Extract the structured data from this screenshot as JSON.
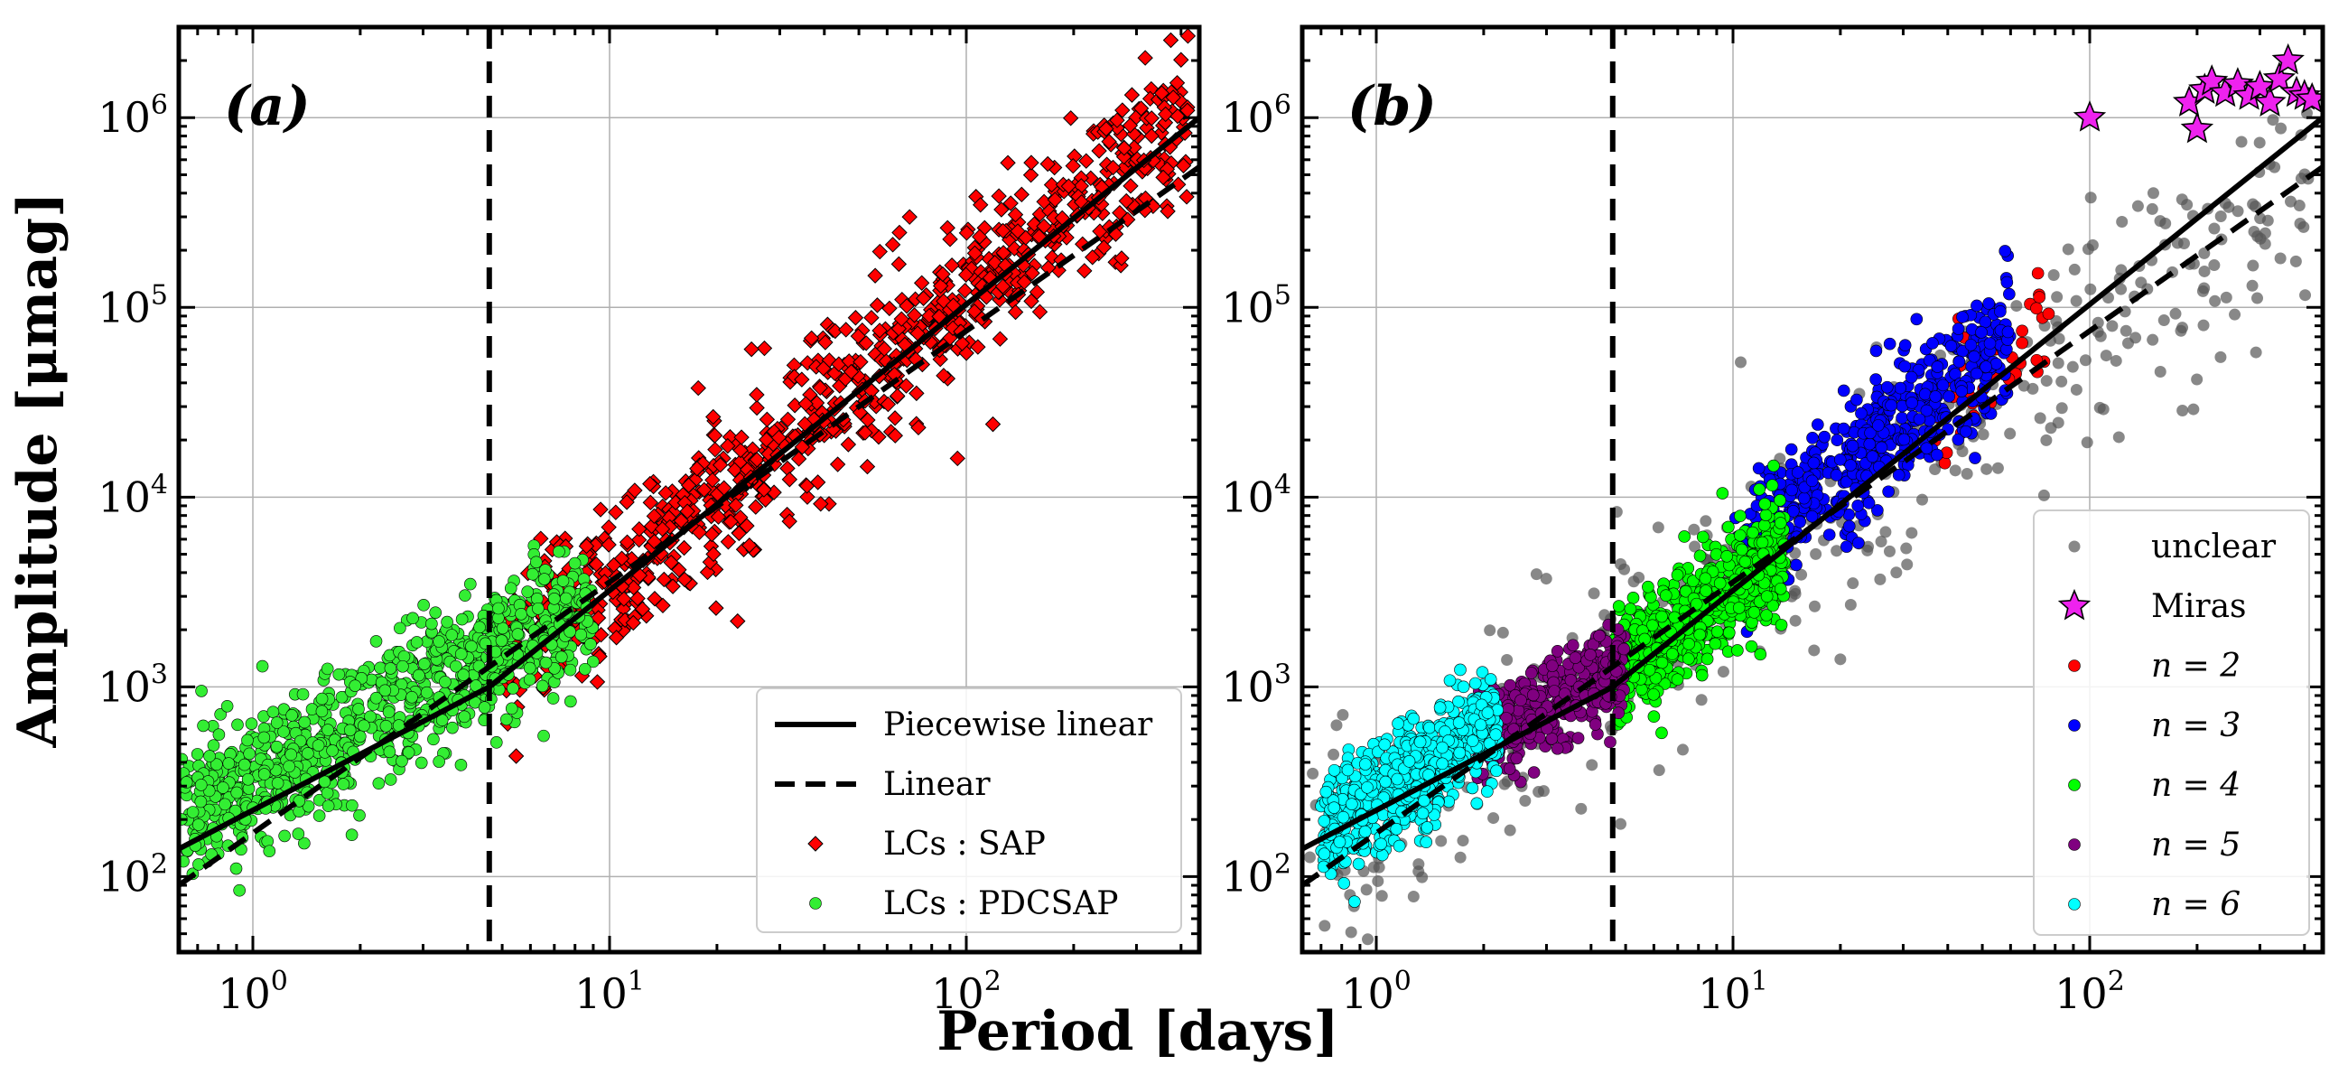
{
  "figure": {
    "xlabel": "Period [days]",
    "ylabel": "Amplitude [μmag]"
  },
  "chart_data": [
    {
      "type": "scatter",
      "panel_label": "(a)",
      "xscale": "log",
      "yscale": "log",
      "xlim": [
        0.62,
        450
      ],
      "ylim": [
        40,
        3000000
      ],
      "xticks": [
        {
          "base": "10",
          "exp": "0"
        },
        {
          "base": "10",
          "exp": "1"
        },
        {
          "base": "10",
          "exp": "2"
        }
      ],
      "yticks": [
        {
          "base": "10",
          "exp": "2"
        },
        {
          "base": "10",
          "exp": "3"
        },
        {
          "base": "10",
          "exp": "4"
        },
        {
          "base": "10",
          "exp": "5"
        },
        {
          "base": "10",
          "exp": "6"
        }
      ],
      "vline_x": 4.6,
      "fits": [
        {
          "name": "Piecewise linear",
          "style": "solid",
          "points": [
            [
              0.62,
              140
            ],
            [
              4.6,
              1000
            ],
            [
              450,
              1000000
            ]
          ]
        },
        {
          "name": "Linear",
          "style": "dashed",
          "points": [
            [
              0.62,
              90
            ],
            [
              450,
              550000
            ]
          ]
        }
      ],
      "series": [
        {
          "name": "LCs : SAP",
          "label_prefix": "LCs :",
          "label_suffix": "SAP",
          "marker": "diamond",
          "color": "#ff0000",
          "period_range": [
            5,
            420
          ],
          "slope": 1.5,
          "anchor_x": 10,
          "anchor_y": 3800,
          "scatter_dex": 0.2,
          "count": 900
        },
        {
          "name": "LCs : PDCSAP",
          "label_prefix": "LCs :",
          "label_suffix": "PDCSAP",
          "marker": "circle",
          "color": "#33ee33",
          "period_range": [
            0.63,
            9
          ],
          "slope": 1.0,
          "anchor_x": 1,
          "anchor_y": 320,
          "scatter_dex": 0.18,
          "count": 900
        }
      ],
      "legend": {
        "location": "lower-right"
      }
    },
    {
      "type": "scatter",
      "panel_label": "(b)",
      "xscale": "log",
      "yscale": "log",
      "xlim": [
        0.62,
        450
      ],
      "ylim": [
        40,
        3000000
      ],
      "xticks": [
        {
          "base": "10",
          "exp": "0"
        },
        {
          "base": "10",
          "exp": "1"
        },
        {
          "base": "10",
          "exp": "2"
        }
      ],
      "yticks": [
        {
          "base": "10",
          "exp": "2"
        },
        {
          "base": "10",
          "exp": "3"
        },
        {
          "base": "10",
          "exp": "4"
        },
        {
          "base": "10",
          "exp": "5"
        },
        {
          "base": "10",
          "exp": "6"
        }
      ],
      "vline_x": 4.6,
      "fits": [
        {
          "name": "Piecewise linear",
          "style": "solid",
          "points": [
            [
              0.62,
              140
            ],
            [
              4.6,
              1000
            ],
            [
              450,
              1000000
            ]
          ]
        },
        {
          "name": "Linear",
          "style": "dashed",
          "points": [
            [
              0.62,
              90
            ],
            [
              450,
              550000
            ]
          ]
        }
      ],
      "series": [
        {
          "name": "unclear",
          "label": "unclear",
          "marker": "circle",
          "color": "#555555",
          "opacity": 0.7,
          "period_range": [
            0.65,
            420
          ],
          "slope": 1.3,
          "anchor_x": 10,
          "anchor_y": 3600,
          "scatter_dex": 0.3,
          "count": 420
        },
        {
          "name": "Miras",
          "label": "Miras",
          "marker": "star",
          "color": "#ee22ee",
          "points": [
            [
              100,
              1000000
            ],
            [
              190,
              1200000
            ],
            [
              200,
              870000
            ],
            [
              210,
              1400000
            ],
            [
              220,
              1550000
            ],
            [
              240,
              1350000
            ],
            [
              260,
              1500000
            ],
            [
              280,
              1300000
            ],
            [
              300,
              1450000
            ],
            [
              320,
              1200000
            ],
            [
              340,
              1600000
            ],
            [
              360,
              2000000
            ],
            [
              380,
              1350000
            ],
            [
              400,
              1300000
            ],
            [
              420,
              1250000
            ]
          ]
        },
        {
          "name": "n = 2",
          "label": "n = 2",
          "marker": "circle",
          "color": "#ff0000",
          "period_range": [
            35,
            80
          ],
          "slope": 1.5,
          "anchor_x": 10,
          "anchor_y": 3800,
          "scatter_dex": 0.15,
          "count": 45
        },
        {
          "name": "n = 3",
          "label": "n = 3",
          "marker": "circle",
          "color": "#0000ff",
          "period_range": [
            10,
            60
          ],
          "slope": 1.5,
          "anchor_x": 10,
          "anchor_y": 4800,
          "scatter_dex": 0.17,
          "count": 520
        },
        {
          "name": "n = 4",
          "label": "n = 4",
          "marker": "circle",
          "color": "#00ff00",
          "period_range": [
            4.6,
            14
          ],
          "slope": 1.4,
          "anchor_x": 10,
          "anchor_y": 3300,
          "scatter_dex": 0.15,
          "count": 620
        },
        {
          "name": "n = 5",
          "label": "n = 5",
          "marker": "circle",
          "color": "#800080",
          "period_range": [
            1.9,
            5
          ],
          "slope": 1.0,
          "anchor_x": 3,
          "anchor_y": 800,
          "scatter_dex": 0.12,
          "count": 380
        },
        {
          "name": "n = 6",
          "label": "n = 6",
          "marker": "circle",
          "color": "#00ffff",
          "period_range": [
            0.7,
            2.2
          ],
          "slope": 1.1,
          "anchor_x": 1,
          "anchor_y": 260,
          "scatter_dex": 0.14,
          "count": 620
        }
      ],
      "legend": {
        "location": "lower-right"
      }
    }
  ]
}
